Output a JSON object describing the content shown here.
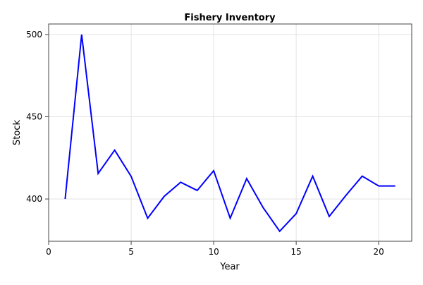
{
  "chart_data": {
    "type": "line",
    "title": "Fishery Inventory",
    "xlabel": "Year",
    "ylabel": "Stock",
    "xlim": [
      0,
      22
    ],
    "ylim": [
      374.3,
      506.4
    ],
    "xticks": [
      0,
      5,
      10,
      15,
      20
    ],
    "yticks": [
      400,
      450,
      500
    ],
    "grid": true,
    "line_color": "#0000ff",
    "series": [
      {
        "x": [
          1,
          2,
          3,
          4,
          5,
          6,
          7,
          8,
          9,
          10,
          11,
          12,
          13,
          14,
          15,
          16,
          17,
          18,
          19,
          20,
          21
        ],
        "values": [
          400,
          500,
          415.5,
          429.7,
          413.7,
          388.3,
          401.6,
          410.2,
          405.2,
          417.2,
          388.3,
          412.4,
          394.7,
          380.4,
          391.1,
          413.9,
          389.4,
          402,
          413.9,
          407.9,
          407.9
        ]
      }
    ]
  }
}
